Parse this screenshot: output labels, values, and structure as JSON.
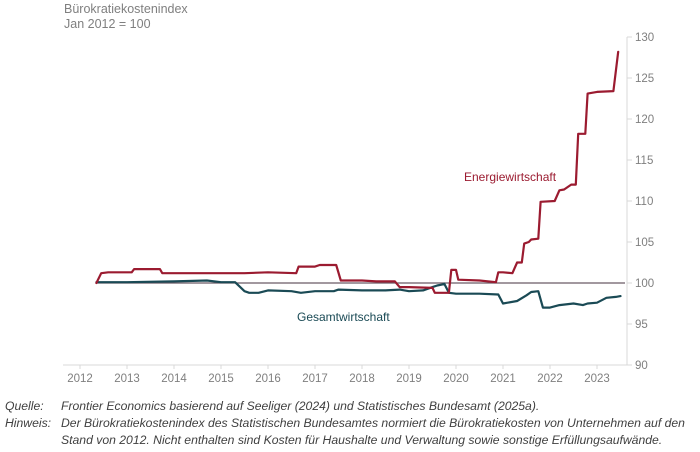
{
  "chart_data": {
    "type": "line",
    "title": "Bürokratiekostenindex",
    "subtitle": "Jan 2012 = 100",
    "xlabel": "",
    "ylabel": "Bürokratiekostenindex, Jan 2012 = 100",
    "xlim": [
      2012,
      2023.6
    ],
    "ylim": [
      90,
      130
    ],
    "x_ticks": [
      "2012",
      "2013",
      "2014",
      "2015",
      "2016",
      "2017",
      "2018",
      "2019",
      "2020",
      "2021",
      "2022",
      "2023"
    ],
    "y_ticks": [
      "90",
      "95",
      "100",
      "105",
      "110",
      "115",
      "120",
      "125",
      "130"
    ],
    "y_axis_side": "right",
    "grid": false,
    "reference_line": 100,
    "series": [
      {
        "name": "Energiewirtschaft",
        "color": "#9b1b30",
        "x": [
          2012.35,
          2012.45,
          2012.6,
          2013.1,
          2013.15,
          2013.7,
          2013.75,
          2014.5,
          2015.0,
          2015.5,
          2016.0,
          2016.6,
          2016.65,
          2017.0,
          2017.1,
          2017.45,
          2017.55,
          2018.0,
          2018.3,
          2018.7,
          2018.8,
          2019.0,
          2019.5,
          2019.55,
          2019.85,
          2019.9,
          2020.0,
          2020.05,
          2020.5,
          2020.85,
          2020.9,
          2021.0,
          2021.2,
          2021.3,
          2021.4,
          2021.45,
          2021.55,
          2021.6,
          2021.75,
          2021.8,
          2022.1,
          2022.2,
          2022.3,
          2022.45,
          2022.55,
          2022.6,
          2022.75,
          2022.8,
          2023.0,
          2023.35,
          2023.45
        ],
        "values": [
          100.0,
          101.2,
          101.3,
          101.3,
          101.7,
          101.7,
          101.2,
          101.2,
          101.2,
          101.2,
          101.3,
          101.2,
          102.0,
          102.0,
          102.2,
          102.2,
          100.3,
          100.3,
          100.2,
          100.2,
          99.5,
          99.5,
          99.4,
          98.8,
          98.8,
          101.6,
          101.6,
          100.4,
          100.3,
          100.1,
          101.3,
          101.3,
          101.2,
          102.5,
          102.5,
          104.8,
          105.0,
          105.3,
          105.4,
          109.9,
          110.0,
          111.3,
          111.4,
          112.0,
          112.0,
          118.2,
          118.2,
          123.1,
          123.3,
          123.4,
          128.2
        ]
      },
      {
        "name": "Gesamtwirtschaft",
        "color": "#1a4a55",
        "x": [
          2012.35,
          2013.0,
          2014.0,
          2014.7,
          2015.0,
          2015.3,
          2015.5,
          2015.6,
          2015.8,
          2016.0,
          2016.5,
          2016.7,
          2017.0,
          2017.4,
          2017.5,
          2018.0,
          2018.5,
          2018.8,
          2019.0,
          2019.3,
          2019.5,
          2019.6,
          2019.7,
          2019.75,
          2019.85,
          2020.0,
          2020.5,
          2020.9,
          2021.0,
          2021.3,
          2021.5,
          2021.6,
          2021.75,
          2021.85,
          2022.0,
          2022.2,
          2022.5,
          2022.7,
          2022.8,
          2023.0,
          2023.2,
          2023.4,
          2023.5
        ],
        "values": [
          100.1,
          100.1,
          100.2,
          100.3,
          100.1,
          100.1,
          99.0,
          98.8,
          98.8,
          99.1,
          99.0,
          98.8,
          99.0,
          99.0,
          99.2,
          99.1,
          99.1,
          99.2,
          99.0,
          99.1,
          99.5,
          99.7,
          99.8,
          99.9,
          98.8,
          98.7,
          98.7,
          98.6,
          97.5,
          97.8,
          98.5,
          98.9,
          99.0,
          97.0,
          97.0,
          97.3,
          97.5,
          97.3,
          97.5,
          97.6,
          98.2,
          98.3,
          98.4
        ]
      }
    ],
    "annotations": [
      {
        "text": "Energiewirtschaft",
        "series": "Energiewirtschaft"
      },
      {
        "text": "Gesamtwirtschaft",
        "series": "Gesamtwirtschaft"
      }
    ]
  },
  "notes": {
    "source_key": "Quelle:",
    "source_text": "Frontier Economics basierend auf Seeliger (2024) und Statistisches Bundesamt (2025a).",
    "hint_key": "Hinweis:",
    "hint_text": "Der Bürokratiekostenindex des Statistischen Bundesamtes normiert die Bürokratiekosten von Unternehmen auf den Stand von 2012. Nicht enthalten sind Kosten für Haushalte und Verwaltung sowie sonstige Erfüllungsaufwände."
  }
}
